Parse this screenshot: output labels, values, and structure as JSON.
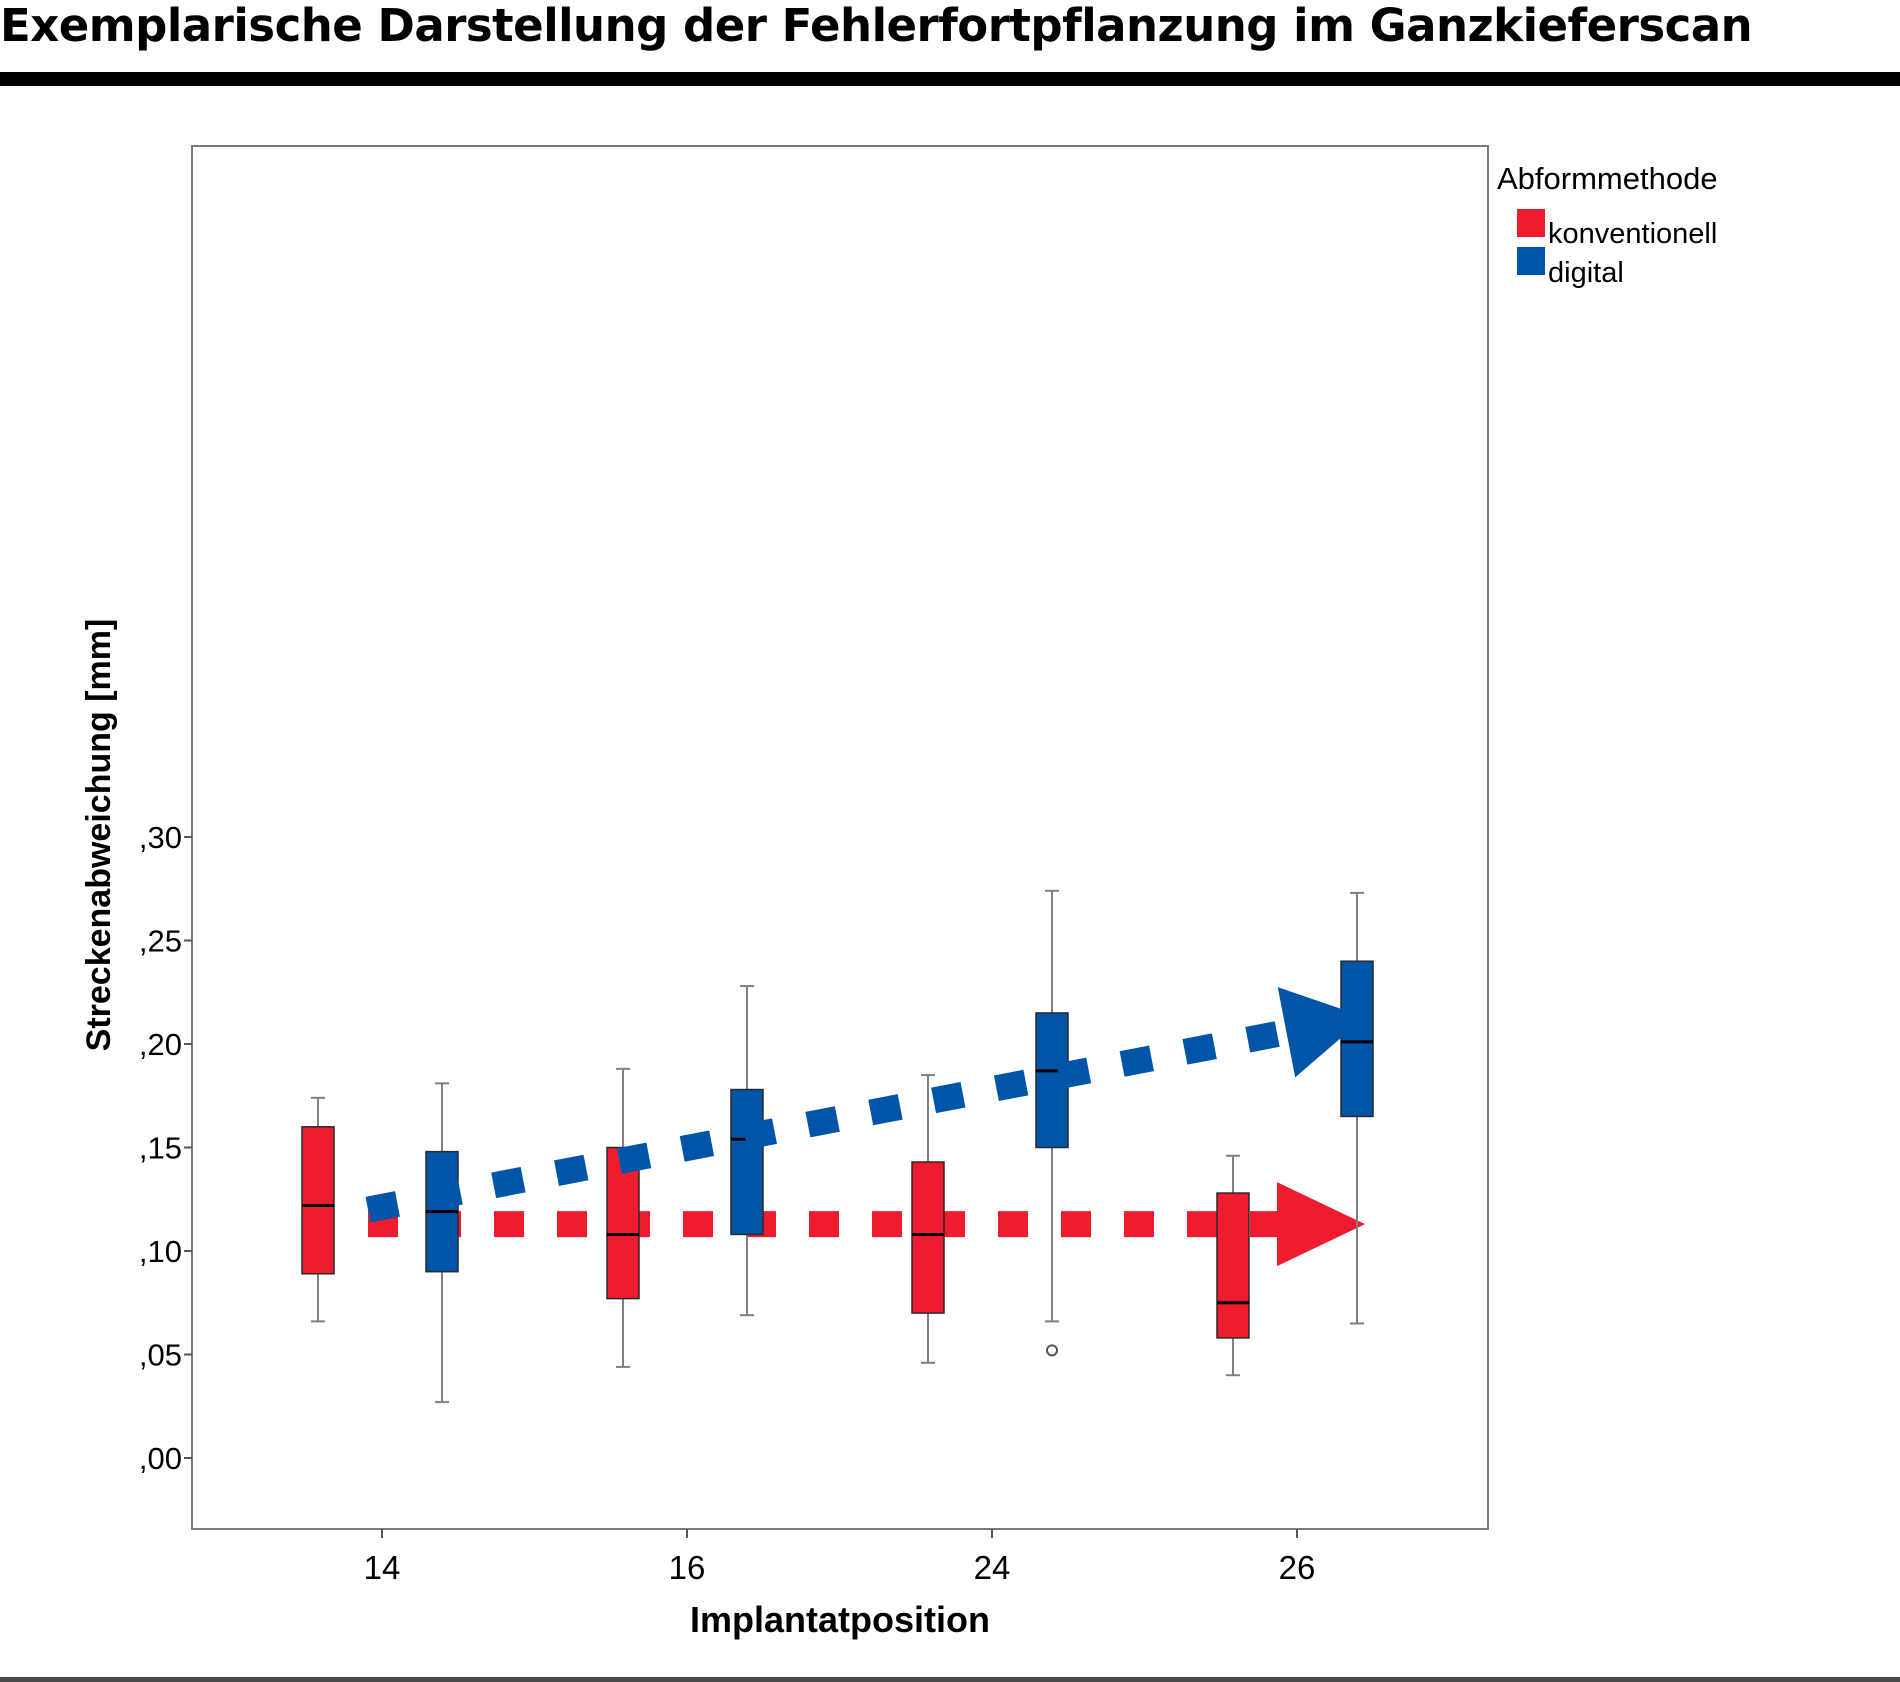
{
  "title": "Exemplarische Darstellung der Fehlerfortpflanzung im Ganzkieferscan",
  "chart_data": {
    "type": "boxplot",
    "xlabel": "Implantatposition",
    "ylabel": "Streckenabweichung [mm]",
    "ylim": [
      -0.01,
      0.315
    ],
    "yticks": [
      {
        "value": 0.0,
        "label": ",00"
      },
      {
        "value": 0.05,
        "label": ",05"
      },
      {
        "value": 0.1,
        "label": ",10"
      },
      {
        "value": 0.15,
        "label": ",15"
      },
      {
        "value": 0.2,
        "label": ",20"
      },
      {
        "value": 0.25,
        "label": ",25"
      },
      {
        "value": 0.3,
        "label": ",30"
      }
    ],
    "categories": [
      "14",
      "16",
      "24",
      "26"
    ],
    "legend": {
      "title": "Abformmethode",
      "position": "right"
    },
    "series": [
      {
        "name": "konventionell",
        "color": "#ee1c2e",
        "boxes": [
          {
            "min": 0.066,
            "q1": 0.089,
            "median": 0.122,
            "q3": 0.16,
            "max": 0.174
          },
          {
            "min": 0.044,
            "q1": 0.077,
            "median": 0.108,
            "q3": 0.15,
            "max": 0.188
          },
          {
            "min": 0.046,
            "q1": 0.07,
            "median": 0.108,
            "q3": 0.143,
            "max": 0.185
          },
          {
            "min": 0.04,
            "q1": 0.058,
            "median": 0.075,
            "q3": 0.128,
            "max": 0.146
          }
        ]
      },
      {
        "name": "digital",
        "color": "#0055a9",
        "boxes": [
          {
            "min": 0.027,
            "q1": 0.09,
            "median": 0.119,
            "q3": 0.148,
            "max": 0.181
          },
          {
            "min": 0.069,
            "q1": 0.108,
            "median": 0.154,
            "q3": 0.178,
            "max": 0.228
          },
          {
            "min": 0.066,
            "q1": 0.15,
            "median": 0.187,
            "q3": 0.215,
            "max": 0.274,
            "outliers": [
              0.052
            ]
          },
          {
            "min": 0.065,
            "q1": 0.165,
            "median": 0.201,
            "q3": 0.24,
            "max": 0.273
          }
        ]
      }
    ],
    "trend_arrows": [
      {
        "series": "konventionell",
        "color": "#ee1c2e",
        "from": {
          "category": "14",
          "value": 0.113
        },
        "to": {
          "category": "26",
          "value": 0.113
        }
      },
      {
        "series": "digital",
        "color": "#0055a9",
        "from": {
          "category": "14",
          "value": 0.12
        },
        "to": {
          "category": "26",
          "value": 0.213
        }
      }
    ]
  }
}
